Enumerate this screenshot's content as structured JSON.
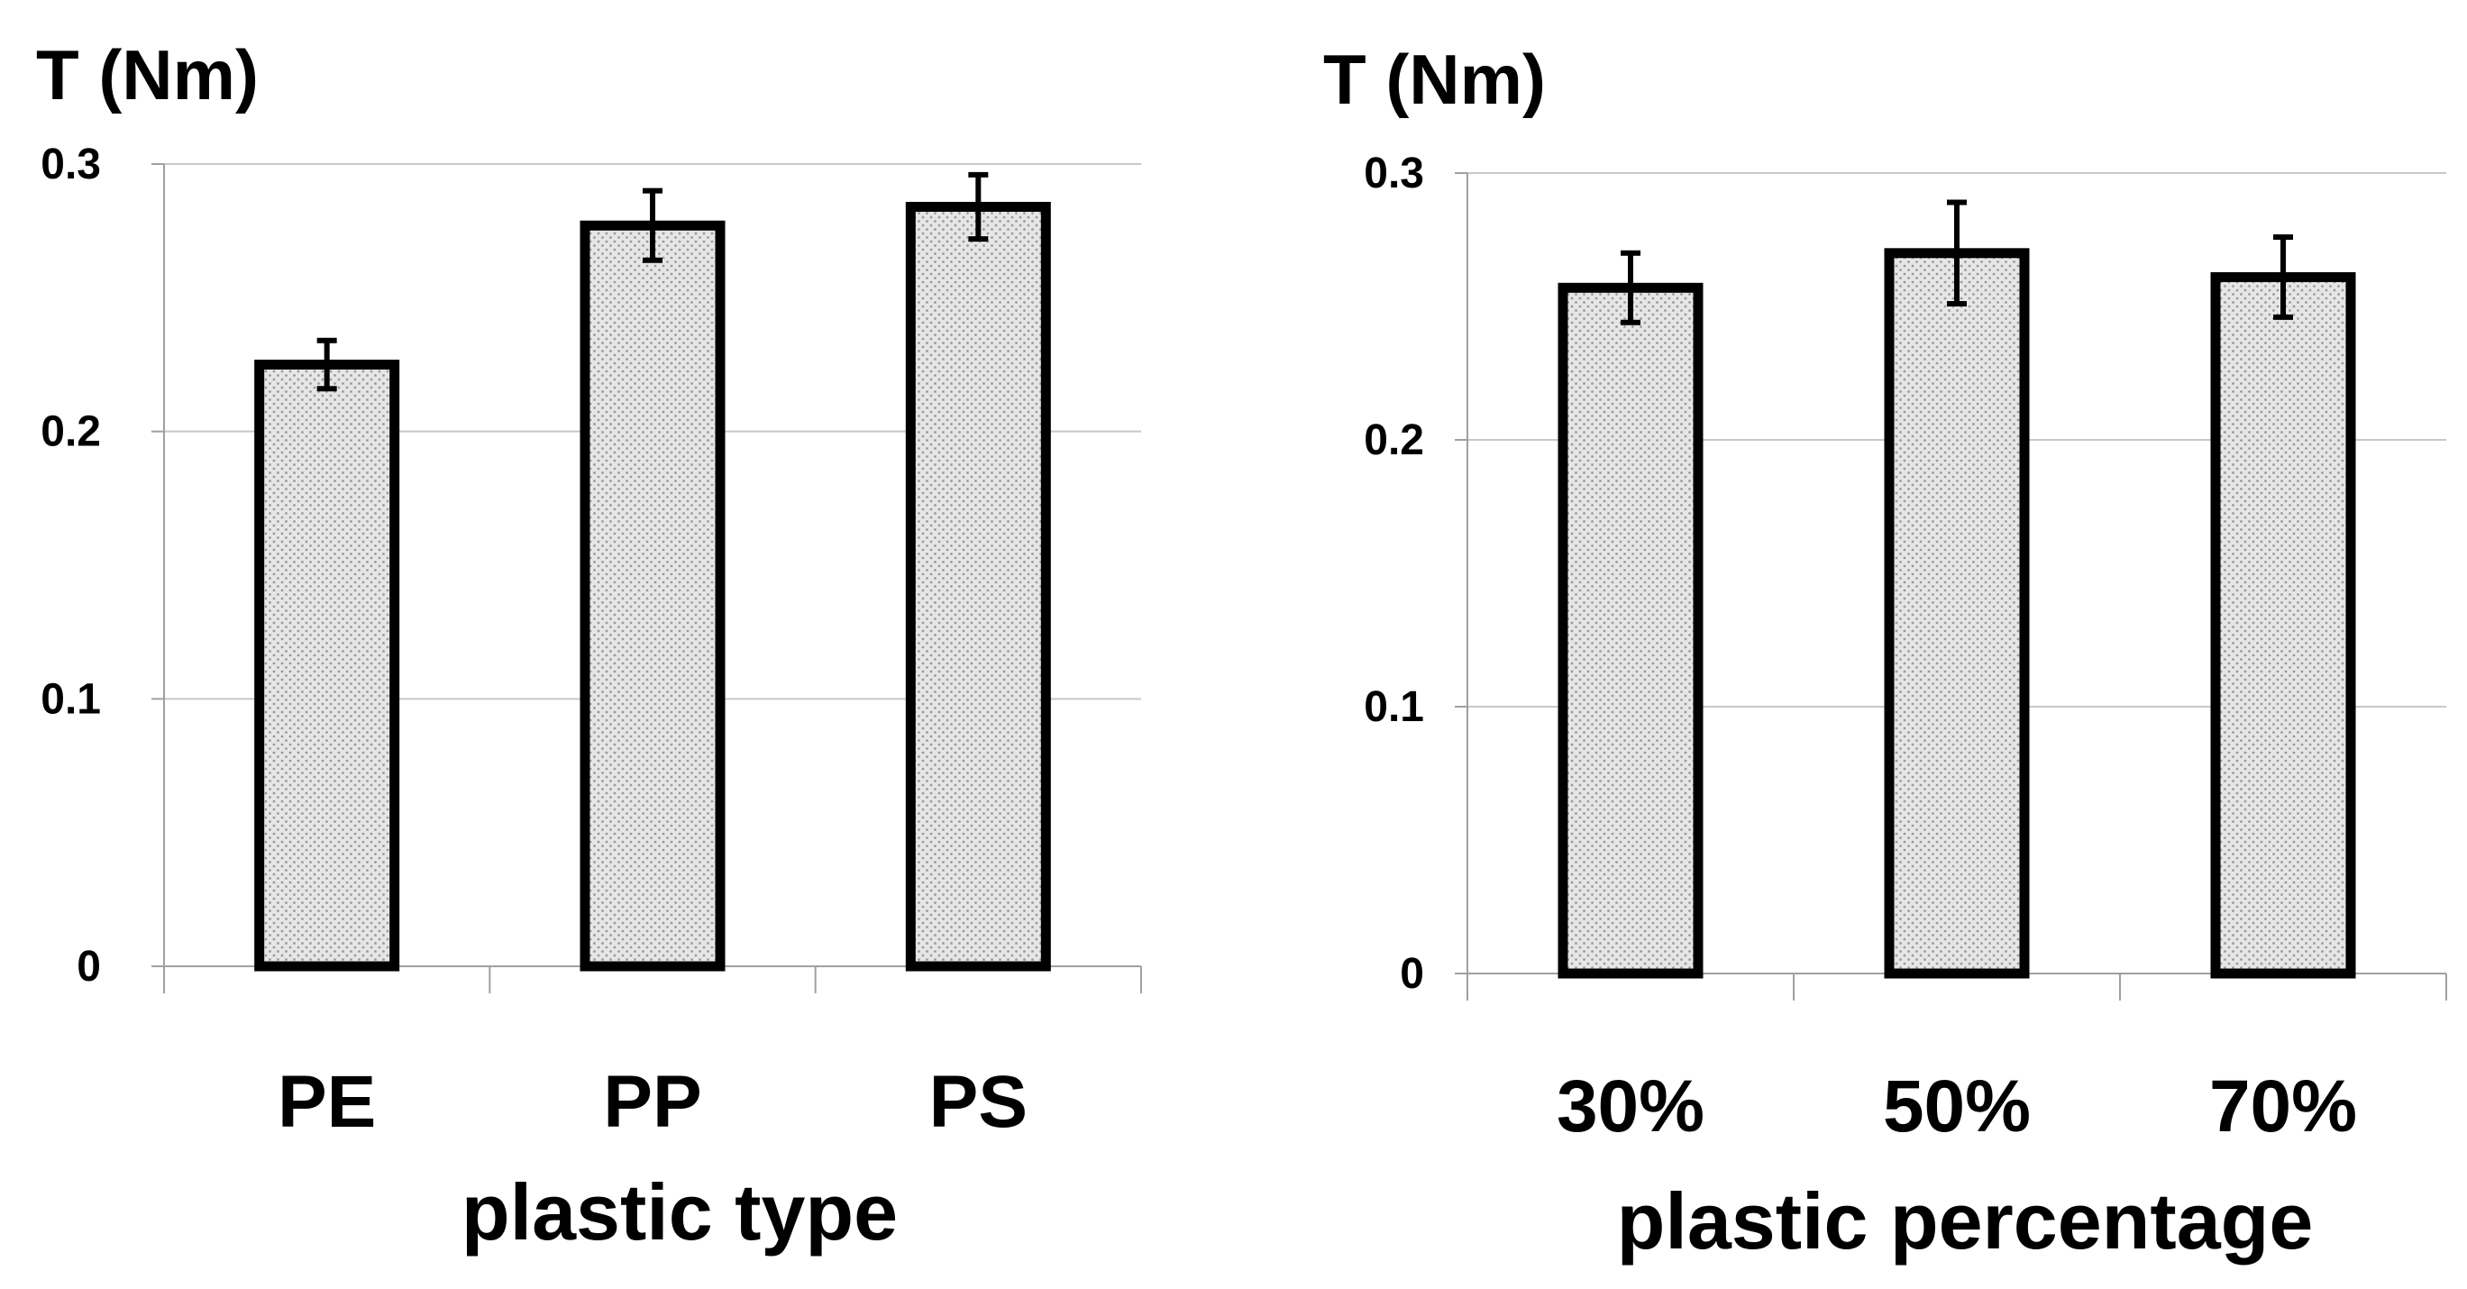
{
  "chart_data": [
    {
      "type": "bar",
      "title": "",
      "ylabel": "T (Nm)",
      "xlabel": "plastic type",
      "categories": [
        "PE",
        "PP",
        "PS"
      ],
      "values": [
        0.225,
        0.277,
        0.284
      ],
      "errors": [
        0.009,
        0.013,
        0.012
      ],
      "ylim": [
        0,
        0.3
      ],
      "yticks": [
        0,
        0.1,
        0.2,
        0.3
      ],
      "ytick_labels": [
        "0",
        "0.1",
        "0.2",
        "0.3"
      ],
      "grid": true,
      "legend": "none"
    },
    {
      "type": "bar",
      "title": "",
      "ylabel": "T (Nm)",
      "xlabel": "plastic percentage",
      "categories": [
        "30%",
        "50%",
        "70%"
      ],
      "values": [
        0.257,
        0.27,
        0.261
      ],
      "errors": [
        0.013,
        0.019,
        0.015
      ],
      "ylim": [
        0,
        0.3
      ],
      "yticks": [
        0,
        0.1,
        0.2,
        0.3
      ],
      "ytick_labels": [
        "0",
        "0.1",
        "0.2",
        "0.3"
      ],
      "grid": true,
      "legend": "none"
    }
  ],
  "colors": {
    "bar_fill": "#e6e6e6",
    "bar_dot": "#9a9a9a",
    "bar_edge": "#000000",
    "grid": "#c8c8c8",
    "axis": "#a0a0a0",
    "text": "#000000"
  }
}
